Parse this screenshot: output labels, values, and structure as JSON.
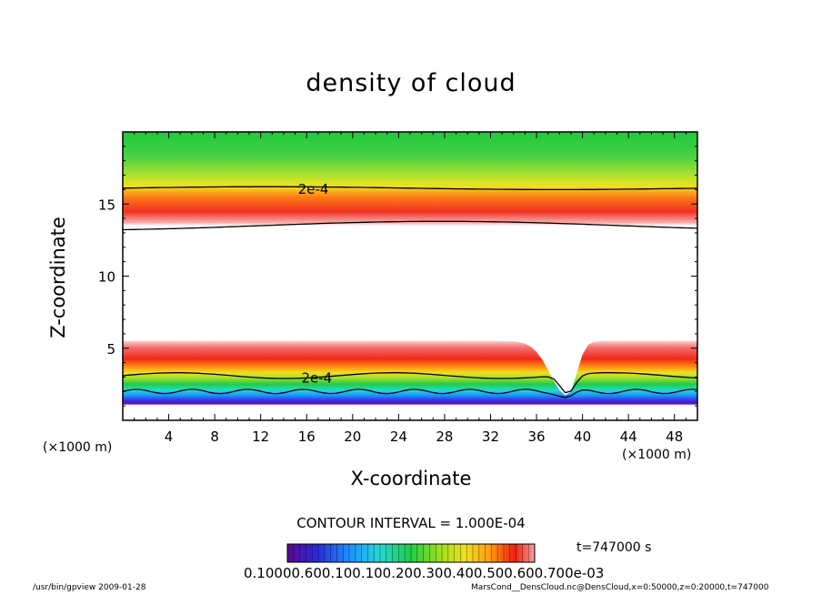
{
  "chart_data": {
    "type": "heatmap",
    "title": "density of cloud",
    "xlabel": "X-coordinate",
    "ylabel": "Z-coordinate",
    "x_unit": "(×1000 m)",
    "y_unit": "(×1000 m)",
    "xlim": [
      0,
      50
    ],
    "ylim": [
      0,
      20
    ],
    "x_ticks": [
      4,
      8,
      12,
      16,
      20,
      24,
      28,
      32,
      36,
      40,
      44,
      48
    ],
    "y_ticks": [
      5,
      10,
      15
    ],
    "contour_label": "2e-4",
    "contour_interval": "CONTOUR INTERVAL = 1.000E-04",
    "time": "t=747000 s",
    "colorbar_ticks": "0.10000.600.100.100.200.300.400.500.600.700e-03",
    "colormap": [
      "#5a0a8c",
      "#2a2ad6",
      "#1e90ff",
      "#22d8d8",
      "#22cc44",
      "#a0e020",
      "#f0e020",
      "#ff9a10",
      "#f02010",
      "#f7a0a0"
    ],
    "upper_layer": {
      "bottom_km": 13.5,
      "peak_km": 14.5,
      "top_km": 20.0,
      "contour_km": 16.1
    },
    "lower_layer": {
      "bottom_km": 1.1,
      "contour_km": 3.1,
      "peak_km": 4.4,
      "top_km": 5.5,
      "dip_x_km": 38.7,
      "dip_bottom_km": 1.7
    }
  },
  "footer": {
    "left": "/usr/bin/gpview  2009-01-28",
    "right": "MarsCond__DensCloud.nc@DensCloud,x=0:50000,z=0:20000,t=747000"
  }
}
